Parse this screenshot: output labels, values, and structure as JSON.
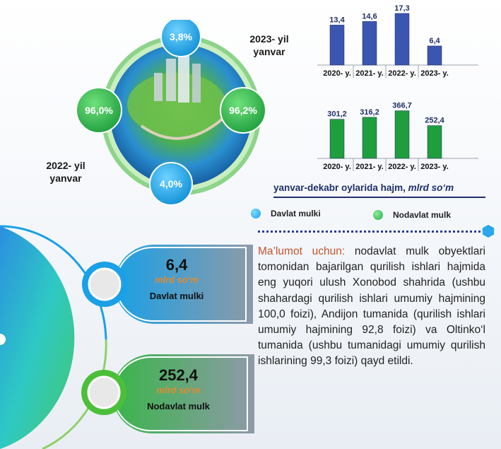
{
  "globe": {
    "top_pct": "3,8%",
    "left_pct": "96,0%",
    "right_pct": "96,2%",
    "bottom_pct": "4,0%",
    "label_2023": [
      "2023- yil",
      "yanvar"
    ],
    "label_2022": [
      "2022-  yil",
      "yanvar"
    ]
  },
  "chart_data": [
    {
      "type": "bar",
      "categories": [
        "2020- y.",
        "2021- y.",
        "2022- y.",
        "2023- y."
      ],
      "values": [
        13.4,
        14.6,
        17.3,
        6.4
      ],
      "value_labels": [
        "13,4",
        "14,6",
        "17,3",
        "6,4"
      ],
      "series_name": "Davlat mulki",
      "color": "#3a56b0",
      "ylim": [
        0,
        18
      ]
    },
    {
      "type": "bar",
      "categories": [
        "2020- y.",
        "2021- y.",
        "2022- y.",
        "2023- y."
      ],
      "values": [
        301.2,
        316.2,
        366.7,
        252.4
      ],
      "value_labels": [
        "301,2",
        "316,2",
        "366,7",
        "252,4"
      ],
      "series_name": "Nodavlat mulk",
      "color": "#1f9e3e",
      "ylim": [
        0,
        370
      ]
    }
  ],
  "caption": {
    "main": "yanvar-dekabr oylarida hajm,",
    "unit": "mlrd so‘m"
  },
  "legend": [
    {
      "label": "Davlat mulki",
      "color": "#1aa0e6"
    },
    {
      "label": "Nodavlat mulk",
      "color": "#22b14c"
    }
  ],
  "pills": {
    "state": {
      "value": "6,4",
      "unit": "mlrd so‘m",
      "name": "Davlat mulki"
    },
    "private": {
      "value": "252,4",
      "unit": "mlrd so‘m",
      "name": "Nodavlat mulk"
    }
  },
  "info": {
    "highlight": "Ma’lumot uchun:",
    "text": " nodavlat mulk obyektlari tomonidan bajarilgan qurilish ishlari hajmida eng yuqori ulush Xonobod shahrida (ushbu shahardagi qurilish ishlari umumiy hajmining 100,0 foizi), Andijon tumanida (qurilish ishlari umumiy hajmining 92,8 foizi) va Oltinko‘l tumanida (ushbu tumanidagi umumiy qurilish ishlarining 99,3 foizi) qayd etildi."
  }
}
